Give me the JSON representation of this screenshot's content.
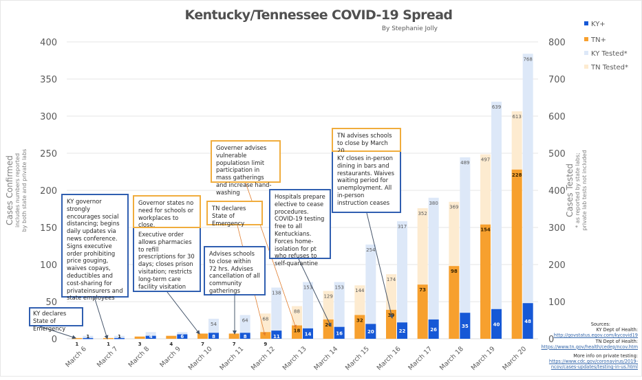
{
  "chart_data": {
    "type": "bar",
    "title": "Kentucky/Tennessee COVID-19 Spread",
    "subtitle": "By Stephanie Jolly",
    "categories": [
      "March 6",
      "March 7",
      "March 8",
      "March 9",
      "March 10",
      "March 11",
      "March 12",
      "March 13",
      "March 14",
      "March 15",
      "March 16",
      "March 17",
      "March 18",
      "March 19",
      "March 20"
    ],
    "series": [
      {
        "name": "KY+",
        "axis": "left",
        "color": "#1658d6",
        "values": [
          1,
          1,
          4,
          6,
          8,
          8,
          11,
          14,
          16,
          20,
          22,
          26,
          35,
          40,
          48
        ],
        "labels": [
          "1",
          "1",
          "4",
          "6",
          "8",
          "8",
          "11",
          "14",
          "16",
          "20",
          "22",
          "26",
          "35",
          "40",
          "48"
        ]
      },
      {
        "name": "TN+",
        "axis": "left",
        "color": "#f7a02e",
        "values": [
          1,
          1,
          3,
          4,
          7,
          7,
          9,
          18,
          26,
          32,
          39,
          73,
          98,
          154,
          228
        ],
        "labels": [
          "1",
          "1",
          "3",
          "4",
          "7",
          "7",
          "9",
          "18",
          "26",
          "32",
          "39",
          "73",
          "98",
          "154",
          "228"
        ]
      },
      {
        "name": "KY Tested*",
        "axis": "right",
        "color": "#dde8f8",
        "values": [
          8,
          8,
          18,
          18,
          54,
          64,
          138,
          153,
          153,
          254,
          317,
          380,
          489,
          639,
          768
        ],
        "labels": [
          "",
          "",
          "",
          "",
          "54",
          "64",
          "138",
          "153",
          "153",
          "254",
          "317",
          "380",
          "489",
          "639",
          "768"
        ]
      },
      {
        "name": "TN Tested*",
        "axis": "right",
        "color": "#fdebd0",
        "values": [
          2,
          2,
          3,
          4,
          7,
          7,
          68,
          88,
          129,
          144,
          174,
          352,
          369,
          497,
          613
        ],
        "labels": [
          "",
          "",
          "",
          "",
          "",
          "",
          "68",
          "88",
          "129",
          "144",
          "174",
          "352",
          "369",
          "497",
          "613"
        ]
      }
    ],
    "y_left": {
      "label": "Cases Confirmed",
      "sublabel_1": "includes numbers reported",
      "sublabel_2": "by both state and private labs",
      "range": [
        0,
        400
      ],
      "ticks": [
        "0",
        "50",
        "100",
        "150",
        "200",
        "250",
        "300",
        "350",
        "400"
      ]
    },
    "y_right": {
      "label": "Cases Tested",
      "sublabel_1": "* as reported by state labs;",
      "sublabel_2": "private lab tests not included",
      "range": [
        0,
        800
      ],
      "ticks": [
        "0",
        "100",
        "200",
        "300",
        "400",
        "500",
        "600",
        "700",
        "800"
      ]
    },
    "grid": true,
    "legend_position": "top-right"
  },
  "annotations": [
    {
      "id": "ky-emergency",
      "text": "KY declares State of Emergency",
      "color": "blue"
    },
    {
      "id": "ky-governor-distancing",
      "text": "KY governor strongly encourages social distancing; begins daily updates via news conference. Signs executive order prohibiting price gouging, waives copays, deductibles and cost-sharing for privateinsurers and state employees",
      "color": "blue"
    },
    {
      "id": "tn-gov-no-close",
      "text": "Governor states no need for schools or workplaces to close.",
      "color": "orange"
    },
    {
      "id": "ky-pharmacies",
      "text": "Executive order allows pharmacies to refill prescriptions for 30 days; closes prison visitation; restricts long-term care facility visitation",
      "color": "blue"
    },
    {
      "id": "tn-emergency",
      "text": "TN declares State of Emergency",
      "color": "orange"
    },
    {
      "id": "ky-schools-72",
      "text": "Advises schools to close within 72 hrs. Advises cancellation of all community gatherings",
      "color": "blue"
    },
    {
      "id": "tn-vulnerable",
      "text": "Governer advises vulnerable populatiosn limit participation in mass gatherings and increase hand-washing",
      "color": "orange"
    },
    {
      "id": "ky-hospitals",
      "text": "Hospitals prepare elective to cease procedures. COVID-19 testing free to all Kentuckians. Forces home-isolation for pt who refuses to self-quarantine",
      "color": "blue"
    },
    {
      "id": "tn-schools-close",
      "text": "TN advises schools to close by March 20",
      "color": "orange"
    },
    {
      "id": "ky-dining",
      "text": "KY closes in-person dining in bars and restaurants. Waives waiting period for unemployment. All in-person instruction ceases",
      "color": "blue"
    }
  ],
  "sources": {
    "heading": "Sources:",
    "ky_label": "KY Dept of Health:",
    "ky_link": "http://govstatus.egov.com/kycovid19",
    "tn_label": "TN Dept of Health:",
    "tn_link": "https://www.tn.gov/health/cedep/ncov.htm",
    "private_label": "More info on private testing:",
    "private_link_1": "https://www.cdc.gov/coronavirus/2019-",
    "private_link_2": "ncov/cases-updates/testing-in-us.html"
  }
}
